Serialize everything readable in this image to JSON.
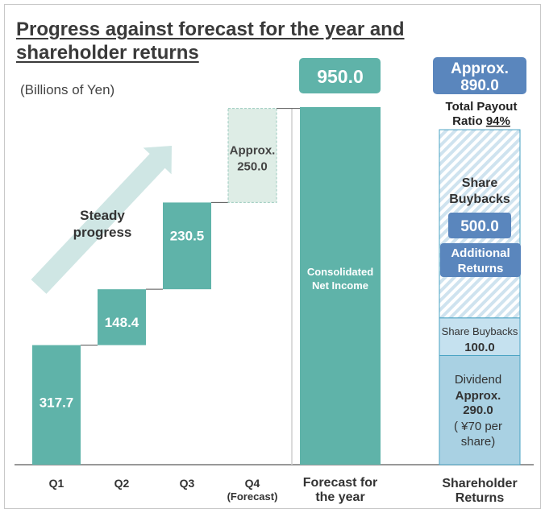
{
  "title_line1": "Progress against forecast for the year and",
  "title_line2": "shareholder returns",
  "unit_label": "(Billions of Yen)",
  "arrow_label_line1": "Steady",
  "arrow_label_line2": "progress",
  "colors": {
    "teal": "#5fb3a9",
    "forecast_fill": "#deede6",
    "badge_blue": "#5a86bd",
    "light_blue": "#a9d1e3",
    "pale_blue": "#c5e1ef",
    "arrow": "#cfe6e4",
    "hatch": "#cfe3ef"
  },
  "chart_data": {
    "type": "waterfall",
    "ylim": [
      0,
      950
    ],
    "categories": [
      {
        "label_line1": "Q1",
        "label_line2": "",
        "value": 317.7,
        "value_text": "317.7",
        "value_text2": "",
        "forecast": false
      },
      {
        "label_line1": "Q2",
        "label_line2": "",
        "value": 148.4,
        "value_text": "148.4",
        "value_text2": "",
        "forecast": false
      },
      {
        "label_line1": "Q3",
        "label_line2": "",
        "value": 230.5,
        "value_text": "230.5",
        "value_text2": "",
        "forecast": false
      },
      {
        "label_line1": "Q4",
        "label_line2": "(Forecast)",
        "value": 250.0,
        "value_text": "Approx.",
        "value_text2": "250.0",
        "forecast": true
      }
    ],
    "total": {
      "value": 950.0,
      "value_text": "950.0",
      "inner_line1": "Consolidated",
      "inner_line2": "Net Income",
      "label_line1": "Forecast for",
      "label_line2": "the year"
    },
    "returns": {
      "total_line1": "Approx.",
      "total_line2": "890.0",
      "payout_line1": "Total Payout",
      "payout_prefix": "Ratio ",
      "payout_pct": "94%",
      "label_line1": "Shareholder",
      "label_line2": "Returns",
      "segments": {
        "additional": {
          "value": 500.0,
          "value_text": "500.0",
          "title_line1": "Share",
          "title_line2": "Buybacks",
          "badge_line1": "Additional",
          "badge_line2": "Returns"
        },
        "buyback": {
          "value": 100.0,
          "value_text": "100.0",
          "title": "Share Buybacks"
        },
        "dividend": {
          "value": 290.0,
          "line1": "Dividend",
          "line2": "Approx.",
          "line3": "290.0",
          "line4": "( ¥70 per",
          "line5": "share)"
        }
      }
    }
  }
}
